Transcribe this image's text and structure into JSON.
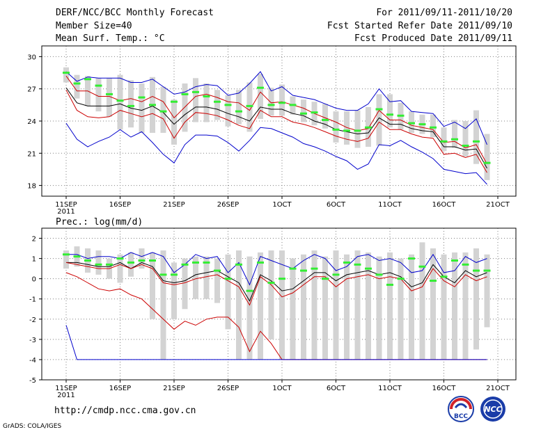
{
  "header": {
    "title": "DERF/NCC/BCC Monthly Forecast",
    "member_size": "Member Size=40",
    "variable": "Mean Surf. Temp.: °C",
    "period": "For 2011/09/11-2011/10/20",
    "started": "Fcst Started Refer Date 2011/09/10",
    "produced": "Fcst Produced Date 2011/09/11"
  },
  "footer": {
    "url": "http://cmdp.ncc.cma.gov.cn",
    "credit": "GrADS: COLA/IGES",
    "logo_left": "BCC",
    "logo_right": "NCC"
  },
  "colors": {
    "box": "#d3d3d3",
    "median": "#33ee33",
    "mean": "#000000",
    "inner": "#cc0000",
    "outer": "#0000cc",
    "grid": "#7f7f7f"
  },
  "chart_data": [
    {
      "type": "line",
      "title": "Mean Surf. Temp.: °C",
      "ylim": [
        17,
        31
      ],
      "yticks": [
        18,
        21,
        24,
        27,
        30
      ],
      "xticks": [
        {
          "day": 1,
          "label": "11SEP",
          "sub": "2011"
        },
        {
          "day": 6,
          "label": "16SEP"
        },
        {
          "day": 11,
          "label": "21SEP"
        },
        {
          "day": 16,
          "label": "26SEP"
        },
        {
          "day": 21,
          "label": "1OCT"
        },
        {
          "day": 26,
          "label": "6OCT"
        },
        {
          "day": 31,
          "label": "11OCT"
        },
        {
          "day": 36,
          "label": "16OCT"
        },
        {
          "day": 41,
          "label": "21OCT"
        }
      ],
      "x": [
        1,
        2,
        3,
        4,
        5,
        6,
        7,
        8,
        9,
        10,
        11,
        12,
        13,
        14,
        15,
        16,
        17,
        18,
        19,
        20,
        21,
        22,
        23,
        24,
        25,
        26,
        27,
        28,
        29,
        30,
        31,
        32,
        33,
        34,
        35,
        36,
        37,
        38,
        39,
        40
      ],
      "box_low": [
        27.6,
        26.1,
        25.4,
        24.9,
        24.4,
        23.2,
        23.4,
        22.9,
        22.9,
        22.9,
        21.8,
        23.0,
        23.9,
        23.9,
        24.1,
        23.5,
        23.7,
        23.0,
        24.2,
        24.5,
        24.5,
        24.6,
        23.9,
        23.6,
        23.3,
        22.0,
        21.8,
        21.5,
        21.6,
        21.7,
        23.4,
        23.2,
        22.9,
        22.8,
        22.5,
        21.2,
        21.5,
        20.7,
        20.0,
        18.5
      ],
      "box_high": [
        29.0,
        28.3,
        28.2,
        28.0,
        28.0,
        28.3,
        27.8,
        27.5,
        28.1,
        27.2,
        26.0,
        27.5,
        28.0,
        27.5,
        26.9,
        26.4,
        26.9,
        27.6,
        28.4,
        27.1,
        27.4,
        26.3,
        26.0,
        25.8,
        25.6,
        24.9,
        24.9,
        25.0,
        25.3,
        26.5,
        26.5,
        25.7,
        24.9,
        24.6,
        24.6,
        23.4,
        24.1,
        24.0,
        25.0,
        22.8
      ],
      "series": [
        {
          "name": "outer_high",
          "color": "#0000cc",
          "values": [
            28.6,
            27.7,
            28.1,
            28.0,
            28.0,
            28.0,
            27.6,
            27.6,
            27.9,
            27.2,
            26.5,
            26.7,
            27.2,
            27.4,
            27.3,
            26.4,
            26.6,
            27.5,
            28.6,
            26.8,
            27.2,
            26.4,
            26.2,
            26.0,
            25.6,
            25.2,
            25.0,
            25.0,
            25.6,
            27.0,
            25.8,
            25.9,
            24.9,
            24.8,
            24.7,
            23.5,
            23.9,
            23.3,
            24.2,
            21.8
          ]
        },
        {
          "name": "inner_high",
          "color": "#cc0000",
          "values": [
            28.2,
            26.8,
            26.8,
            26.3,
            26.3,
            25.9,
            26.1,
            25.8,
            26.3,
            25.8,
            24.3,
            25.3,
            26.3,
            26.5,
            26.2,
            25.8,
            25.7,
            25.0,
            26.7,
            25.7,
            25.8,
            25.5,
            25.2,
            24.7,
            24.3,
            23.9,
            23.4,
            23.1,
            23.3,
            25.0,
            24.1,
            24.1,
            23.6,
            23.4,
            23.2,
            22.0,
            22.1,
            21.5,
            21.8,
            20.0
          ]
        },
        {
          "name": "mean",
          "color": "#000000",
          "values": [
            27.1,
            25.7,
            25.4,
            25.4,
            25.4,
            25.6,
            25.2,
            25.0,
            25.4,
            24.8,
            23.7,
            24.6,
            25.3,
            25.3,
            25.1,
            24.7,
            24.4,
            24.0,
            25.3,
            25.1,
            25.1,
            24.7,
            24.5,
            24.0,
            23.7,
            23.2,
            23.0,
            22.8,
            22.9,
            24.3,
            23.7,
            23.7,
            23.3,
            23.1,
            23.0,
            21.6,
            21.6,
            21.3,
            21.4,
            19.6
          ]
        },
        {
          "name": "inner_low",
          "color": "#cc0000",
          "values": [
            26.9,
            25.0,
            24.4,
            24.3,
            24.4,
            25.0,
            24.7,
            24.4,
            24.7,
            24.2,
            22.4,
            23.9,
            24.8,
            24.7,
            24.5,
            24.1,
            23.6,
            23.3,
            25.0,
            24.4,
            24.4,
            23.9,
            23.7,
            23.4,
            23.0,
            22.6,
            22.3,
            22.1,
            22.4,
            23.9,
            23.2,
            23.2,
            22.8,
            22.5,
            22.4,
            20.9,
            21.0,
            20.6,
            20.9,
            19.2
          ]
        },
        {
          "name": "outer_low",
          "color": "#0000cc",
          "values": [
            23.8,
            22.3,
            21.6,
            22.1,
            22.5,
            23.2,
            22.5,
            23.0,
            22.0,
            20.9,
            20.1,
            21.8,
            22.7,
            22.7,
            22.6,
            22.0,
            21.2,
            22.2,
            23.4,
            23.3,
            22.9,
            22.5,
            21.9,
            21.6,
            21.2,
            20.7,
            20.3,
            19.5,
            20.0,
            21.8,
            21.7,
            22.2,
            21.6,
            21.1,
            20.5,
            19.5,
            19.3,
            19.1,
            19.2,
            18.1
          ]
        },
        {
          "name": "median",
          "color": "#33ee33",
          "values": [
            28.5,
            27.5,
            27.9,
            27.3,
            26.5,
            25.9,
            25.4,
            26.2,
            25.5,
            24.9,
            25.8,
            26.5,
            26.7,
            26.3,
            25.8,
            25.5,
            24.9,
            25.4,
            27.1,
            25.5,
            25.7,
            25.5,
            24.7,
            24.8,
            24.1,
            23.2,
            23.1,
            23.1,
            23.4,
            25.1,
            24.6,
            24.5,
            23.8,
            23.7,
            23.4,
            22.1,
            22.3,
            21.7,
            22.1,
            20.1
          ]
        }
      ]
    },
    {
      "type": "line",
      "title": "Prec.: log(mm/d)",
      "ylim": [
        -5,
        2.5
      ],
      "yticks": [
        -5,
        -4,
        -3,
        -2,
        -1,
        0,
        1,
        2
      ],
      "xticks": [
        {
          "day": 1,
          "label": "11SEP",
          "sub": "2011"
        },
        {
          "day": 6,
          "label": "16SEP"
        },
        {
          "day": 11,
          "label": "21SEP"
        },
        {
          "day": 16,
          "label": "26SEP"
        },
        {
          "day": 21,
          "label": "1OCT"
        },
        {
          "day": 26,
          "label": "6OCT"
        },
        {
          "day": 31,
          "label": "11OCT"
        },
        {
          "day": 36,
          "label": "16OCT"
        },
        {
          "day": 41,
          "label": "21OCT"
        }
      ],
      "x": [
        1,
        2,
        3,
        4,
        5,
        6,
        7,
        8,
        9,
        10,
        11,
        12,
        13,
        14,
        15,
        16,
        17,
        18,
        19,
        20,
        21,
        22,
        23,
        24,
        25,
        26,
        27,
        28,
        29,
        30,
        31,
        32,
        33,
        34,
        35,
        36,
        37,
        38,
        39,
        40
      ],
      "box_low": [
        0.5,
        0.6,
        0.3,
        0.2,
        0.0,
        -0.2,
        0.1,
        0.5,
        -2.0,
        -4.0,
        -2.0,
        -1.5,
        -1.0,
        -1.0,
        -1.2,
        -2.5,
        -4.0,
        -4.0,
        -4.0,
        -3.0,
        -4.0,
        -4.0,
        -4.0,
        -4.0,
        -4.0,
        -4.0,
        -4.0,
        -4.0,
        -4.0,
        -4.0,
        -4.0,
        -4.0,
        -4.0,
        -4.0,
        -4.0,
        -4.0,
        -4.0,
        -4.0,
        -3.5,
        -2.4
      ],
      "box_high": [
        1.4,
        1.6,
        1.5,
        1.4,
        1.0,
        1.2,
        1.3,
        1.5,
        1.3,
        1.4,
        0.8,
        1.0,
        1.1,
        1.1,
        1.0,
        1.2,
        1.4,
        1.1,
        1.3,
        1.4,
        1.4,
        1.0,
        1.2,
        1.4,
        1.1,
        1.4,
        1.2,
        1.4,
        1.3,
        1.1,
        1.3,
        1.0,
        1.2,
        1.8,
        1.5,
        1.2,
        1.3,
        1.3,
        1.5,
        1.2
      ],
      "series": [
        {
          "name": "outer_high",
          "color": "#0000cc",
          "values": [
            1.2,
            1.2,
            1.0,
            1.1,
            1.1,
            1.0,
            1.3,
            1.1,
            1.3,
            1.1,
            0.3,
            0.7,
            1.2,
            1.0,
            1.1,
            0.3,
            0.8,
            -0.3,
            1.1,
            0.9,
            0.7,
            0.5,
            0.9,
            1.2,
            1.0,
            0.4,
            0.6,
            1.1,
            1.2,
            0.9,
            1.0,
            0.8,
            0.3,
            0.4,
            1.2,
            0.3,
            0.4,
            1.1,
            0.8,
            1.0
          ]
        },
        {
          "name": "mean",
          "color": "#000000",
          "values": [
            0.8,
            0.8,
            0.7,
            0.6,
            0.6,
            0.8,
            0.5,
            0.8,
            0.6,
            -0.1,
            -0.2,
            -0.1,
            0.2,
            0.3,
            0.4,
            0.1,
            -0.2,
            -1.1,
            0.2,
            -0.1,
            -0.6,
            -0.5,
            -0.1,
            0.3,
            0.3,
            -0.1,
            0.2,
            0.3,
            0.4,
            0.2,
            0.3,
            0.1,
            -0.4,
            -0.2,
            0.7,
            0.1,
            -0.2,
            0.4,
            0.1,
            0.3
          ]
        },
        {
          "name": "inner_high",
          "color": "#cc0000",
          "values": [
            0.8,
            0.7,
            0.6,
            0.5,
            0.5,
            0.7,
            0.5,
            0.7,
            0.5,
            -0.2,
            -0.3,
            -0.2,
            0.0,
            0.1,
            0.2,
            -0.1,
            -0.4,
            -1.3,
            0.1,
            -0.3,
            -0.9,
            -0.7,
            -0.3,
            0.1,
            0.1,
            -0.4,
            0.0,
            0.1,
            0.2,
            0.0,
            0.1,
            0.0,
            -0.6,
            -0.4,
            0.5,
            -0.1,
            -0.4,
            0.2,
            -0.1,
            0.1
          ]
        },
        {
          "name": "inner_low",
          "color": "#cc0000",
          "values": [
            0.3,
            0.1,
            -0.2,
            -0.5,
            -0.6,
            -0.5,
            -0.8,
            -1.0,
            -1.5,
            -2.0,
            -2.5,
            -2.1,
            -2.3,
            -2.0,
            -1.9,
            -1.9,
            -2.4,
            -3.6,
            -2.6,
            -3.2,
            -4.0,
            -4.0,
            -4.0,
            -4.0,
            -4.0,
            -4.0,
            -4.0,
            -4.0,
            -4.0,
            -4.0,
            -4.0,
            -4.0,
            -4.0,
            -4.0,
            -4.0,
            -4.0,
            -4.0,
            -4.0,
            -4.0,
            -4.0
          ]
        },
        {
          "name": "outer_low",
          "color": "#0000cc",
          "values": [
            -2.3,
            -4.0,
            -4.0,
            -4.0,
            -4.0,
            -4.0,
            -4.0,
            -4.0,
            -4.0,
            -4.0,
            -4.0,
            -4.0,
            -4.0,
            -4.0,
            -4.0,
            -4.0,
            -4.0,
            -4.0,
            -4.0,
            -4.0,
            -4.0,
            -4.0,
            -4.0,
            -4.0,
            -4.0,
            -4.0,
            -4.0,
            -4.0,
            -4.0,
            -4.0,
            -4.0,
            -4.0,
            -4.0,
            -4.0,
            -4.0,
            -4.0,
            -4.0,
            -4.0,
            -4.0,
            -4.0
          ]
        },
        {
          "name": "median",
          "color": "#33ee33",
          "values": [
            1.2,
            1.1,
            0.9,
            0.7,
            0.7,
            1.0,
            0.8,
            0.9,
            0.9,
            0.2,
            0.2,
            0.7,
            0.8,
            0.8,
            0.4,
            0.0,
            0.7,
            -0.6,
            0.8,
            -0.2,
            0.0,
            0.5,
            0.4,
            0.5,
            0.0,
            0.2,
            0.8,
            0.7,
            0.5,
            0.2,
            -0.3,
            0.0,
            1.0,
            0.6,
            -0.1,
            0.1,
            0.9,
            0.7,
            0.4,
            0.4
          ]
        }
      ]
    }
  ]
}
